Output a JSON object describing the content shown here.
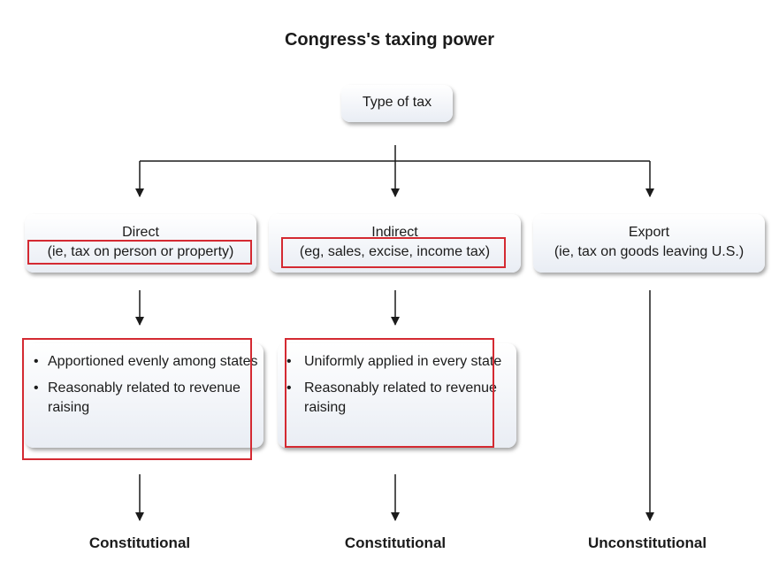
{
  "title": "Congress's taxing power",
  "root": {
    "label": "Type of tax"
  },
  "categories": [
    {
      "name": "Direct",
      "detail": "(ie, tax on person or property)"
    },
    {
      "name": "Indirect",
      "detail": "(eg, sales, excise, income tax)"
    },
    {
      "name": "Export",
      "detail": "(ie, tax on goods leaving U.S.)"
    }
  ],
  "requirements": {
    "direct": [
      "Apportioned evenly among states",
      "Reasonably related to revenue raising"
    ],
    "indirect": [
      "Uniformly applied in every state",
      "Reasonably related to revenue raising"
    ]
  },
  "results": [
    "Constitutional",
    "Constitutional",
    "Unconstitutional"
  ],
  "colors": {
    "highlight": "#d42a32",
    "box_top": "#ffffff",
    "box_bottom": "#e9edf4",
    "line": "#1b1b1b"
  }
}
